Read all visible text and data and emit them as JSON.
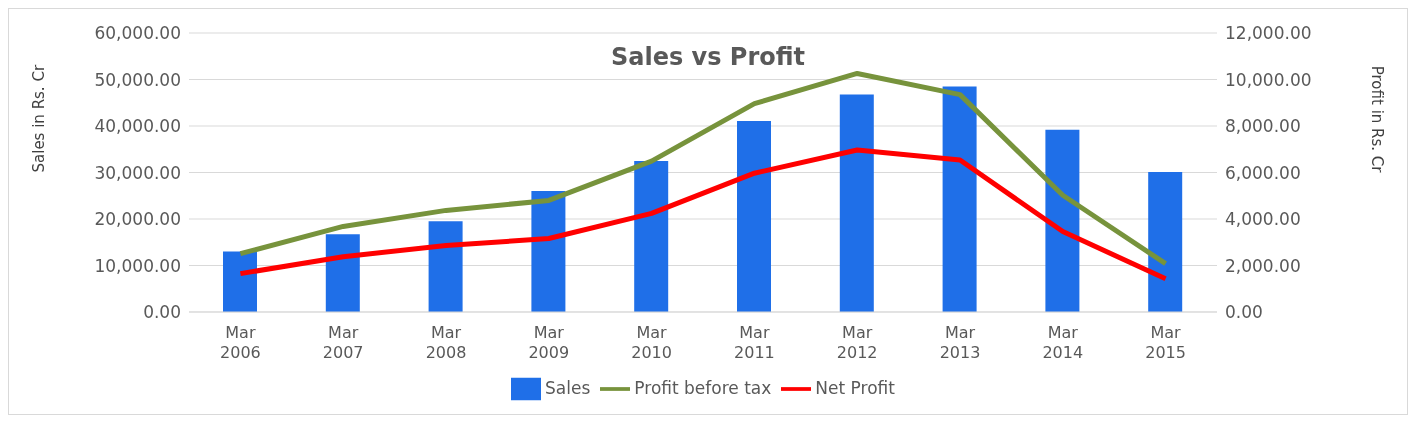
{
  "chart_data": {
    "type": "bar",
    "title": "Sales vs Profit",
    "ylabel": "Sales in Rs. Cr",
    "y2label": "Profit in Rs. Cr",
    "categories": [
      "Mar 2006",
      "Mar 2007",
      "Mar 2008",
      "Mar 2009",
      "Mar 2010",
      "Mar 2011",
      "Mar 2012",
      "Mar 2013",
      "Mar 2014",
      "Mar 2015"
    ],
    "series": [
      {
        "name": "Sales",
        "color": "#1f6fe8",
        "values": [
          13000,
          16700,
          19500,
          26000,
          32500,
          41100,
          46800,
          48500,
          39200,
          30100
        ]
      },
      {
        "name": "Profit before tax",
        "type": "line",
        "axis": "y2",
        "color": "#77933c",
        "values": [
          2510,
          3680,
          4370,
          4800,
          6490,
          8960,
          10260,
          9350,
          5020,
          2080
        ]
      },
      {
        "name": "Net Profit",
        "type": "line",
        "axis": "y2",
        "color": "#ff0000",
        "values": [
          1650,
          2380,
          2860,
          3160,
          4240,
          5970,
          6970,
          6540,
          3460,
          1430
        ]
      }
    ],
    "ylim": [
      0,
      60000
    ],
    "yticks": [
      {
        "value": 0,
        "label": "0.00"
      },
      {
        "value": 10000,
        "label": "10,000.00"
      },
      {
        "value": 20000,
        "label": "20,000.00"
      },
      {
        "value": 30000,
        "label": "30,000.00"
      },
      {
        "value": 40000,
        "label": "40,000.00"
      },
      {
        "value": 50000,
        "label": "50,000.00"
      },
      {
        "value": 60000,
        "label": "60,000.00"
      }
    ],
    "y2lim": [
      0,
      12000
    ],
    "y2ticks": [
      {
        "value": 0,
        "label": "0.00"
      },
      {
        "value": 2000,
        "label": "2,000.00"
      },
      {
        "value": 4000,
        "label": "4,000.00"
      },
      {
        "value": 6000,
        "label": "6,000.00"
      },
      {
        "value": 8000,
        "label": "8,000.00"
      },
      {
        "value": 10000,
        "label": "10,000.00"
      },
      {
        "value": 12000,
        "label": "12,000.00"
      }
    ],
    "grid": "y",
    "legend": "bottom",
    "marker": "none",
    "line_style": "solid"
  }
}
